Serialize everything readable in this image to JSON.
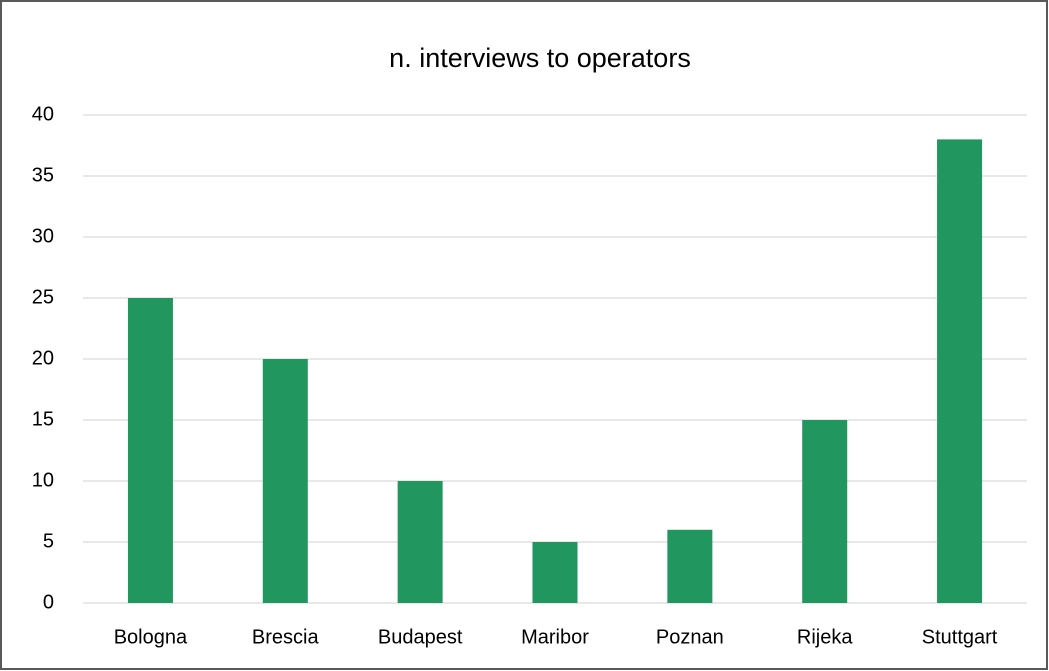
{
  "chart_data": {
    "type": "bar",
    "title": "n. interviews to operators",
    "categories": [
      "Bologna",
      "Brescia",
      "Budapest",
      "Maribor",
      "Poznan",
      "Rijeka",
      "Stuttgart"
    ],
    "values": [
      25,
      20,
      10,
      5,
      6,
      15,
      38
    ],
    "color": "#21965e",
    "ylim": [
      0,
      40
    ],
    "yticks": [
      0,
      5,
      10,
      15,
      20,
      25,
      30,
      35,
      40
    ],
    "grid": true
  }
}
